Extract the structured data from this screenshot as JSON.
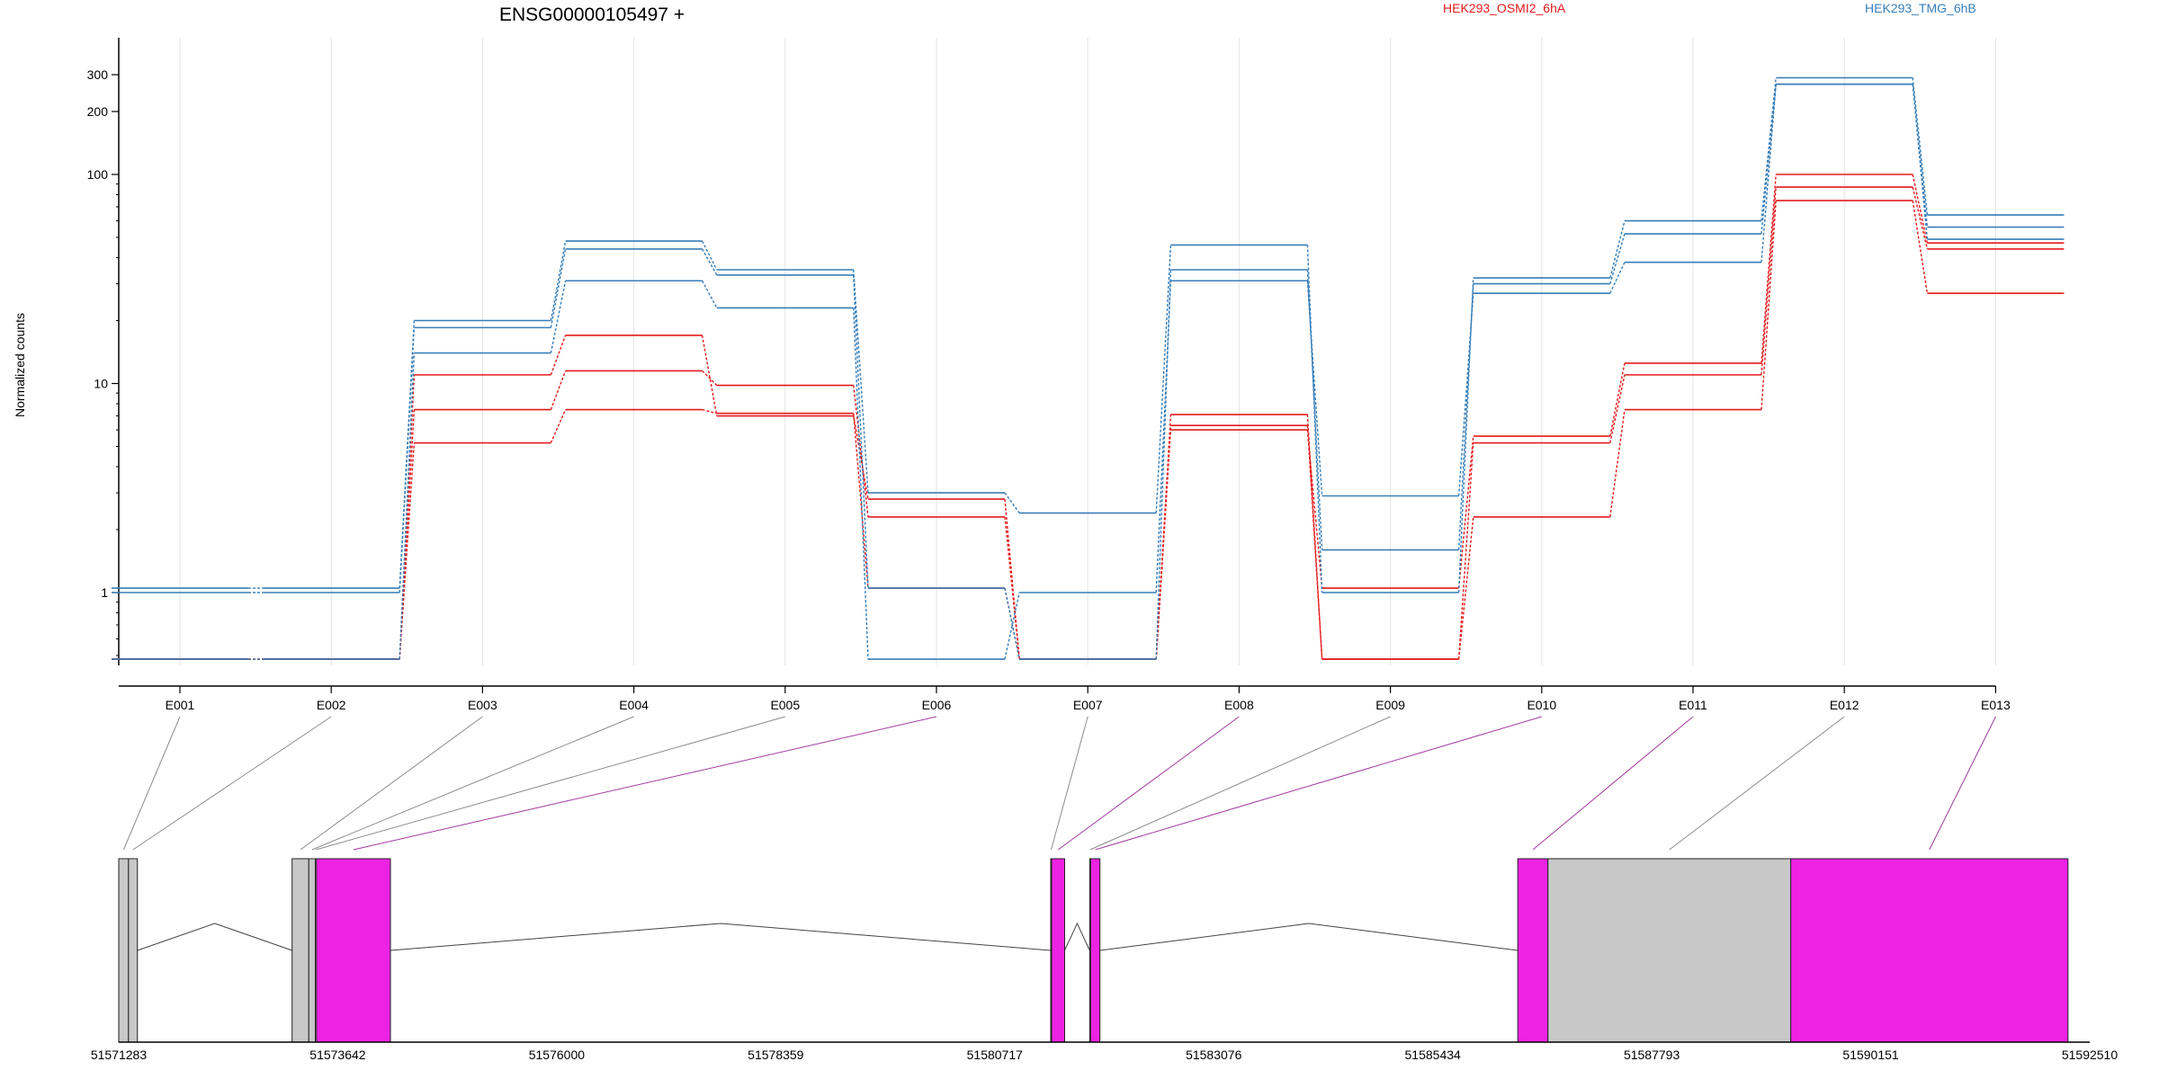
{
  "title": "ENSG00000105497 +",
  "ylabel": "Normalized counts",
  "legend": [
    {
      "label": "HEK293_OSMI2_6hA",
      "color": "#e41a1c"
    },
    {
      "label": "HEK293_TMG_6hB",
      "color": "#377eb8"
    }
  ],
  "colors": {
    "red": "#e41a1c",
    "blue": "#377eb8",
    "grid": "#e3e3e3",
    "exon_featured": "#ee22e2",
    "exon_plain": "#c8c8c8",
    "axis": "#000000"
  },
  "chart_data": {
    "type": "line",
    "scale": "log",
    "yticks": [
      1,
      10,
      100,
      200,
      300
    ],
    "yticklabels": [
      "1",
      "10",
      "100",
      "200",
      "300"
    ],
    "ylim": [
      0.48,
      350
    ],
    "floor_value": 0.48,
    "categories": [
      "E001",
      "E002",
      "E003",
      "E004",
      "E005",
      "E006",
      "E007",
      "E008",
      "E009",
      "E010",
      "E011",
      "E012",
      "E013"
    ],
    "series": [
      {
        "group": "red",
        "values": [
          0.48,
          0.48,
          11,
          17,
          7.0,
          2.8,
          0.48,
          6.0,
          1.05,
          5.6,
          12.5,
          100,
          47
        ]
      },
      {
        "group": "red",
        "values": [
          0.48,
          0.48,
          7.5,
          11.5,
          9.8,
          2.3,
          0.48,
          6.3,
          0.48,
          5.2,
          11,
          87,
          44
        ]
      },
      {
        "group": "red",
        "values": [
          0.48,
          0.48,
          5.2,
          7.5,
          7.2,
          1.05,
          0.48,
          7.1,
          0.48,
          2.3,
          7.5,
          75,
          27
        ]
      },
      {
        "group": "blue",
        "values": [
          1.05,
          1.05,
          20,
          48,
          35,
          3.0,
          2.4,
          46,
          1.0,
          32,
          60,
          290,
          64
        ]
      },
      {
        "group": "blue",
        "values": [
          1.0,
          1.0,
          18.5,
          44,
          33,
          1.05,
          0.48,
          35,
          1.6,
          30,
          52,
          270,
          56
        ]
      },
      {
        "group": "blue",
        "values": [
          0.48,
          0.48,
          14,
          31,
          23,
          0.48,
          1.0,
          31,
          2.9,
          27,
          38,
          270,
          49
        ]
      }
    ],
    "genomic_ticks": [
      "51571283",
      "51573642",
      "51576000",
      "51578359",
      "51580717",
      "51583076",
      "51585434",
      "51587793",
      "51590151",
      "51592510"
    ],
    "exons": [
      {
        "id": "E001",
        "start": 51571283,
        "end": 51571388,
        "featured": false
      },
      {
        "id": "E002",
        "start": 51571388,
        "end": 51571484,
        "featured": false
      },
      {
        "id": "E003",
        "start": 51573150,
        "end": 51573330,
        "featured": false
      },
      {
        "id": "E004",
        "start": 51573330,
        "end": 51573400,
        "featured": false
      },
      {
        "id": "E005",
        "start": 51573400,
        "end": 51573412,
        "featured": false
      },
      {
        "id": "E006",
        "start": 51573412,
        "end": 51574209,
        "featured": true
      },
      {
        "id": "E007",
        "start": 51581320,
        "end": 51581330,
        "featured": false
      },
      {
        "id": "E008",
        "start": 51581330,
        "end": 51581470,
        "featured": true
      },
      {
        "id": "E009",
        "start": 51581740,
        "end": 51581750,
        "featured": false
      },
      {
        "id": "E010",
        "start": 51581750,
        "end": 51581850,
        "featured": true
      },
      {
        "id": "E011",
        "start": 51586350,
        "end": 51586675,
        "featured": true
      },
      {
        "id": "E012",
        "start": 51586675,
        "end": 51589290,
        "featured": false
      },
      {
        "id": "E013",
        "start": 51589290,
        "end": 51592276,
        "featured": true
      }
    ],
    "gene_start": 51571283,
    "gene_end": 51592510
  }
}
